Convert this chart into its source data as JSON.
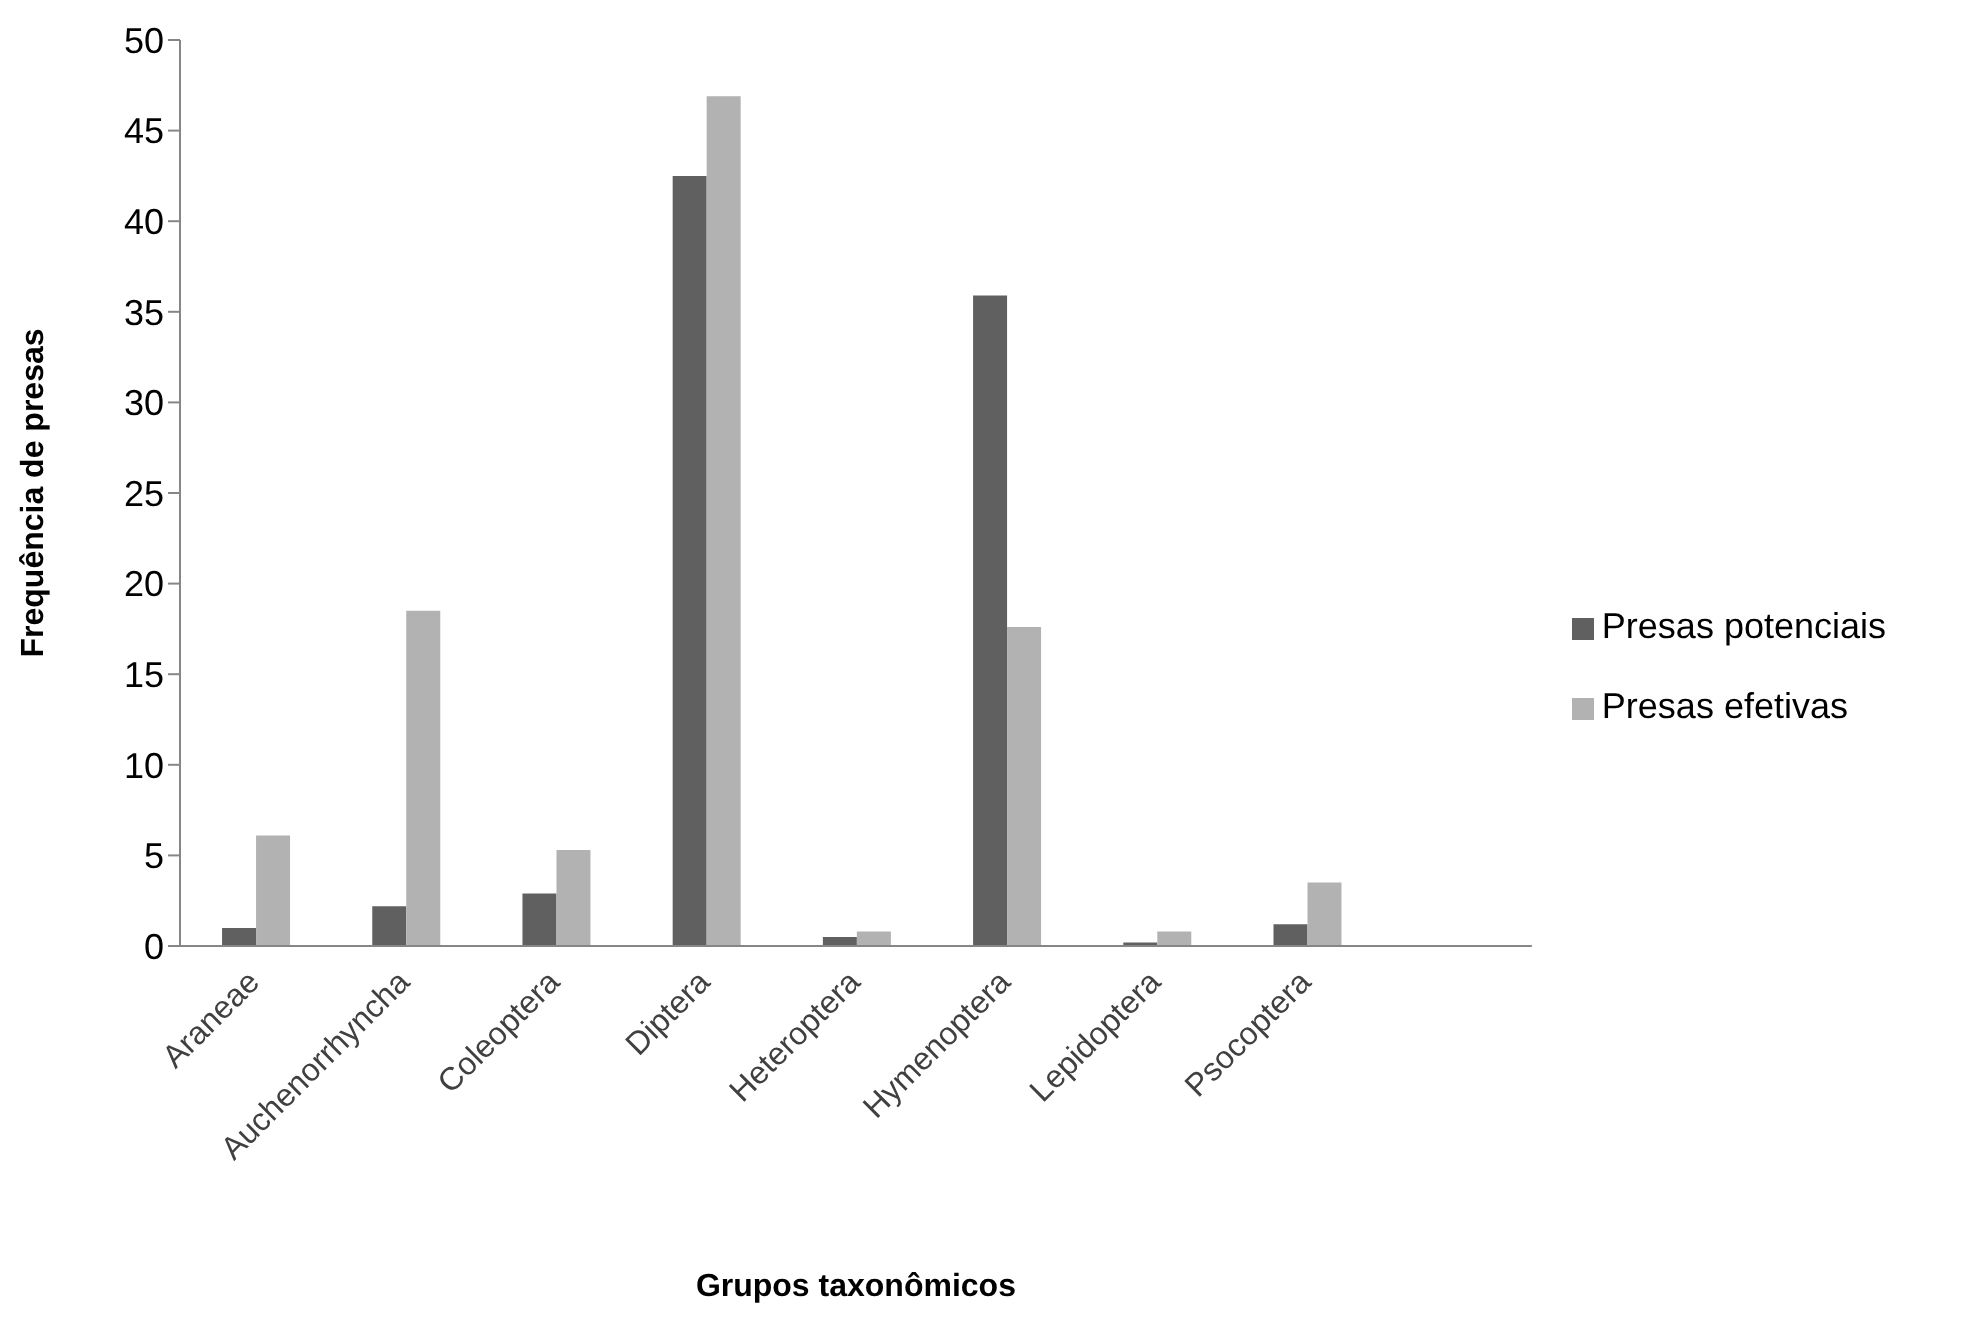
{
  "chart_data": {
    "type": "bar",
    "xlabel": "Grupos taxonômicos",
    "ylabel": "Frequência de presas",
    "categories": [
      "Araneae",
      "Auchenorrhyncha",
      "Coleoptera",
      "Diptera",
      "Heteroptera",
      "Hymenoptera",
      "Lepidoptera",
      "Psocoptera",
      null
    ],
    "series": [
      {
        "name": "Presas potenciais",
        "color": "#606060",
        "values": [
          1.0,
          2.2,
          2.9,
          42.5,
          0.5,
          35.9,
          0.2,
          1.2,
          null
        ]
      },
      {
        "name": "Presas efetivas",
        "color": "#b2b2b2",
        "values": [
          6.1,
          18.5,
          5.3,
          46.9,
          0.8,
          17.6,
          0.8,
          3.5,
          null
        ]
      }
    ],
    "ylim": [
      0,
      50
    ],
    "yticks": [
      0,
      5,
      10,
      15,
      20,
      25,
      30,
      35,
      40,
      45,
      50
    ],
    "grid": false,
    "legend": "right"
  }
}
